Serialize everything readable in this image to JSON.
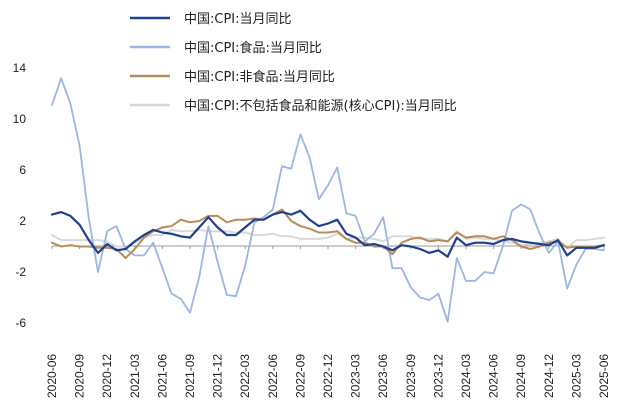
{
  "chart_data": {
    "type": "line",
    "ylim": [
      -6,
      14
    ],
    "yticks": [
      14,
      10,
      6,
      2,
      -2,
      -6
    ],
    "categories": [
      "2020-06",
      "2020-07",
      "2020-08",
      "2020-09",
      "2020-10",
      "2020-11",
      "2020-12",
      "2021-01",
      "2021-02",
      "2021-03",
      "2021-04",
      "2021-05",
      "2021-06",
      "2021-07",
      "2021-08",
      "2021-09",
      "2021-10",
      "2021-11",
      "2021-12",
      "2022-01",
      "2022-02",
      "2022-03",
      "2022-04",
      "2022-05",
      "2022-06",
      "2022-07",
      "2022-08",
      "2022-09",
      "2022-10",
      "2022-11",
      "2022-12",
      "2023-01",
      "2023-02",
      "2023-03",
      "2023-04",
      "2023-05",
      "2023-06",
      "2023-07",
      "2023-08",
      "2023-09",
      "2023-10",
      "2023-11",
      "2023-12",
      "2024-01",
      "2024-02",
      "2024-03",
      "2024-04",
      "2024-05",
      "2024-06",
      "2024-07",
      "2024-08",
      "2024-09",
      "2024-10",
      "2024-11",
      "2024-12",
      "2025-01",
      "2025-02",
      "2025-03",
      "2025-04",
      "2025-05",
      "2025-06"
    ],
    "xtick_labels": [
      "2020-06",
      "2020-09",
      "2020-12",
      "2021-03",
      "2021-06",
      "2021-09",
      "2021-12",
      "2022-03",
      "2022-06",
      "2022-09",
      "2022-12",
      "2023-03",
      "2023-06",
      "2023-09",
      "2023-12",
      "2024-03",
      "2024-06",
      "2024-09",
      "2024-12",
      "2025-03",
      "2025-06"
    ],
    "legend_position": "top",
    "grid": false,
    "series": [
      {
        "name": "中国:CPI:当月同比",
        "color": "#1f3f8f",
        "width": 2.2,
        "values": [
          2.5,
          2.7,
          2.4,
          1.7,
          0.5,
          -0.5,
          0.2,
          -0.3,
          -0.2,
          0.4,
          0.9,
          1.3,
          1.1,
          1.0,
          0.8,
          0.7,
          1.5,
          2.3,
          1.5,
          0.9,
          0.9,
          1.5,
          2.1,
          2.1,
          2.5,
          2.7,
          2.5,
          2.8,
          2.1,
          1.6,
          1.8,
          2.1,
          1.0,
          0.7,
          0.1,
          0.2,
          0.0,
          -0.3,
          0.1,
          0.0,
          -0.2,
          -0.5,
          -0.3,
          -0.8,
          0.7,
          0.1,
          0.3,
          0.3,
          0.2,
          0.5,
          0.6,
          0.4,
          0.3,
          0.2,
          0.1,
          0.5,
          -0.7,
          -0.1,
          -0.1,
          -0.1,
          0.1
        ]
      },
      {
        "name": "中国:CPI:食品:当月同比",
        "color": "#9cb6e4",
        "width": 1.8,
        "values": [
          11.1,
          13.2,
          11.2,
          7.9,
          2.2,
          -2.0,
          1.2,
          1.6,
          -0.2,
          -0.7,
          -0.7,
          0.3,
          -1.7,
          -3.7,
          -4.1,
          -5.2,
          -2.4,
          1.6,
          -1.2,
          -3.8,
          -3.9,
          -1.5,
          1.9,
          2.3,
          2.9,
          6.3,
          6.1,
          8.8,
          7.0,
          3.7,
          4.8,
          6.2,
          2.6,
          2.4,
          0.4,
          1.0,
          2.3,
          -1.7,
          -1.7,
          -3.2,
          -4.0,
          -4.2,
          -3.7,
          -5.9,
          -0.9,
          -2.7,
          -2.7,
          -2.0,
          -2.1,
          0.0,
          2.8,
          3.3,
          2.9,
          1.0,
          -0.5,
          0.4,
          -3.3,
          -1.4,
          -0.2,
          -0.2,
          -0.3
        ]
      },
      {
        "name": "中国:CPI:非食品:当月同比",
        "color": "#b88c5a",
        "width": 2.0,
        "values": [
          0.3,
          0.0,
          0.1,
          0.0,
          0.0,
          -0.1,
          -0.1,
          -0.2,
          -0.9,
          -0.2,
          0.7,
          1.2,
          1.5,
          1.6,
          2.1,
          1.9,
          2.0,
          2.4,
          2.4,
          1.9,
          2.1,
          2.1,
          2.2,
          2.1,
          2.5,
          2.9,
          2.0,
          1.6,
          1.4,
          1.1,
          1.1,
          1.2,
          0.6,
          0.3,
          0.3,
          0.0,
          0.0,
          -0.6,
          0.3,
          0.6,
          0.7,
          0.4,
          0.5,
          0.4,
          1.1,
          0.7,
          0.8,
          0.8,
          0.6,
          0.8,
          0.5,
          0.0,
          -0.2,
          0.0,
          0.3,
          0.4,
          -0.1,
          0.0,
          -0.1,
          0.0,
          0.1
        ]
      },
      {
        "name": "中国:CPI:不包括食品和能源(核心CPI):当月同比",
        "color": "#d9d9d9",
        "width": 2.0,
        "values": [
          0.9,
          0.5,
          0.5,
          0.5,
          0.5,
          0.5,
          0.4,
          0.0,
          0.0,
          0.3,
          0.7,
          0.9,
          0.9,
          1.3,
          1.2,
          1.2,
          1.3,
          1.2,
          1.2,
          1.2,
          1.1,
          1.1,
          0.9,
          0.9,
          1.0,
          0.8,
          0.8,
          0.6,
          0.6,
          0.6,
          0.7,
          1.0,
          0.6,
          0.7,
          0.7,
          0.6,
          0.4,
          0.8,
          0.8,
          0.8,
          0.6,
          0.6,
          0.6,
          0.4,
          1.2,
          0.6,
          0.7,
          0.6,
          0.6,
          0.4,
          0.3,
          0.1,
          0.2,
          0.3,
          0.4,
          0.6,
          -0.1,
          0.5,
          0.5,
          0.6,
          0.7
        ]
      }
    ]
  }
}
